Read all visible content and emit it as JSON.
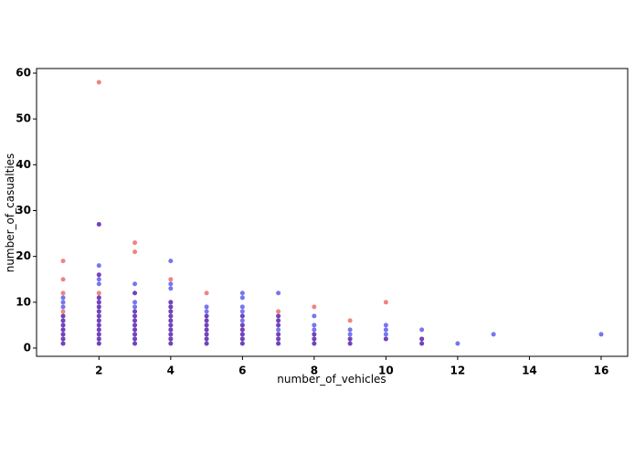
{
  "chart_data": {
    "type": "scatter",
    "x_label": "number_of_vehicles",
    "y_label": "number_of_casualties",
    "xlim": [
      0.26,
      16.74
    ],
    "xticks": [
      2,
      4,
      6,
      8,
      10,
      12,
      14,
      16
    ],
    "ylim": [
      -1.8,
      61.0
    ],
    "yticks": [
      0,
      10,
      20,
      30,
      40,
      50,
      60
    ],
    "series": [
      {
        "color": "#e8312c",
        "x": [
          1,
          1,
          1,
          1,
          1,
          1,
          1,
          1,
          1,
          1,
          1,
          2,
          2,
          2,
          2,
          2,
          2,
          2,
          2,
          2,
          2,
          2,
          2,
          2,
          2,
          2,
          3,
          3,
          3,
          3,
          3,
          3,
          3,
          3,
          3,
          3,
          3,
          4,
          4,
          4,
          4,
          4,
          4,
          4,
          4,
          4,
          4,
          4,
          5,
          5,
          5,
          5,
          5,
          5,
          5,
          5,
          6,
          6,
          6,
          6,
          6,
          6,
          7,
          7,
          7,
          7,
          7,
          7,
          7,
          8,
          8,
          8,
          8,
          9,
          9,
          9,
          10,
          10,
          11,
          11
        ],
        "values": [
          1,
          2,
          3,
          4,
          5,
          6,
          7,
          8,
          12,
          15,
          19,
          1,
          2,
          3,
          4,
          5,
          6,
          7,
          8,
          9,
          10,
          11,
          12,
          16,
          27,
          58,
          1,
          2,
          3,
          4,
          5,
          6,
          7,
          8,
          12,
          21,
          23,
          1,
          2,
          3,
          4,
          5,
          6,
          7,
          8,
          9,
          10,
          15,
          1,
          2,
          3,
          4,
          5,
          6,
          7,
          12,
          1,
          2,
          3,
          4,
          5,
          7,
          1,
          2,
          3,
          5,
          6,
          7,
          8,
          1,
          2,
          3,
          9,
          1,
          2,
          6,
          2,
          10,
          1,
          2
        ]
      },
      {
        "color": "#1a1ae6",
        "x": [
          1,
          1,
          1,
          1,
          1,
          1,
          1,
          1,
          1,
          1,
          2,
          2,
          2,
          2,
          2,
          2,
          2,
          2,
          2,
          2,
          2,
          2,
          2,
          2,
          2,
          2,
          3,
          3,
          3,
          3,
          3,
          3,
          3,
          3,
          3,
          3,
          3,
          3,
          4,
          4,
          4,
          4,
          4,
          4,
          4,
          4,
          4,
          4,
          4,
          4,
          4,
          5,
          5,
          5,
          5,
          5,
          5,
          5,
          5,
          5,
          6,
          6,
          6,
          6,
          6,
          6,
          6,
          6,
          6,
          6,
          6,
          7,
          7,
          7,
          7,
          7,
          7,
          7,
          7,
          8,
          8,
          8,
          8,
          8,
          8,
          9,
          9,
          9,
          9,
          10,
          10,
          10,
          10,
          11,
          11,
          11,
          12,
          13,
          16
        ],
        "values": [
          1,
          2,
          3,
          4,
          5,
          6,
          7,
          9,
          10,
          11,
          1,
          2,
          3,
          4,
          5,
          6,
          7,
          8,
          9,
          10,
          11,
          14,
          15,
          16,
          18,
          27,
          1,
          2,
          3,
          4,
          5,
          6,
          7,
          8,
          9,
          10,
          12,
          14,
          1,
          2,
          3,
          4,
          5,
          6,
          7,
          8,
          9,
          10,
          13,
          14,
          19,
          1,
          2,
          3,
          4,
          5,
          6,
          7,
          8,
          9,
          1,
          2,
          3,
          4,
          5,
          6,
          7,
          8,
          9,
          11,
          12,
          1,
          2,
          3,
          4,
          5,
          6,
          7,
          12,
          1,
          2,
          3,
          4,
          5,
          7,
          1,
          2,
          3,
          4,
          2,
          3,
          4,
          5,
          1,
          2,
          4,
          1,
          3,
          3
        ]
      }
    ]
  }
}
